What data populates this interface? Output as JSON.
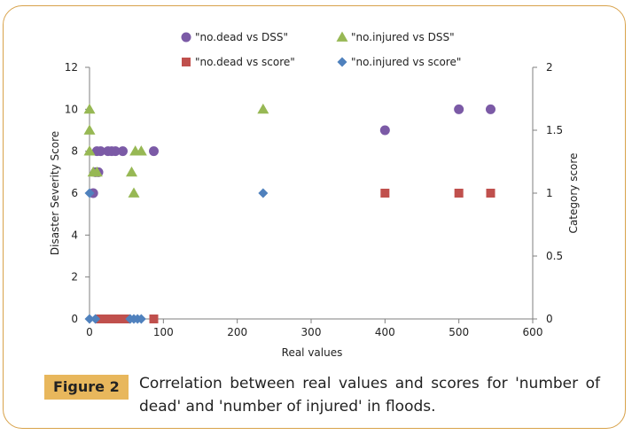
{
  "chart_data": {
    "type": "scatter",
    "xlabel": "Real values",
    "ylabel": "Disaster Severity Score",
    "y2label": "Category score",
    "xlim": [
      0,
      600
    ],
    "ylim": [
      0,
      12
    ],
    "y2lim": [
      0,
      2
    ],
    "xticks": [
      0,
      100,
      200,
      300,
      400,
      500,
      600
    ],
    "yticks": [
      0,
      2,
      4,
      6,
      8,
      10,
      12
    ],
    "y2ticks": [
      "0",
      "0.5",
      "1",
      "1.5",
      "2"
    ],
    "y2tickvals": [
      0,
      0.5,
      1,
      1.5,
      2
    ],
    "grid": false,
    "legend_position": "top",
    "series": [
      {
        "name": "\"no.dead vs DSS\"",
        "axis": "left",
        "marker": "circle",
        "color": "#7b5aa6",
        "points": [
          [
            5,
            6
          ],
          [
            8,
            7
          ],
          [
            12,
            7
          ],
          [
            10,
            8
          ],
          [
            15,
            8
          ],
          [
            25,
            8
          ],
          [
            30,
            8
          ],
          [
            35,
            8
          ],
          [
            45,
            8
          ],
          [
            87,
            8
          ],
          [
            400,
            9
          ],
          [
            500,
            10
          ],
          [
            543,
            10
          ]
        ]
      },
      {
        "name": "\"no.injured vs DSS\"",
        "axis": "left",
        "marker": "triangle",
        "color": "#97b854",
        "points": [
          [
            0,
            8
          ],
          [
            0,
            9
          ],
          [
            0,
            10
          ],
          [
            5,
            7
          ],
          [
            10,
            7
          ],
          [
            57,
            7
          ],
          [
            60,
            6
          ],
          [
            62,
            8
          ],
          [
            70,
            8
          ],
          [
            235,
            10
          ]
        ]
      },
      {
        "name": "\"no.dead vs score\"",
        "axis": "right",
        "marker": "square",
        "color": "#c0504d",
        "points": [
          [
            15,
            0
          ],
          [
            20,
            0
          ],
          [
            25,
            0
          ],
          [
            30,
            0
          ],
          [
            35,
            0
          ],
          [
            40,
            0
          ],
          [
            45,
            0
          ],
          [
            50,
            0
          ],
          [
            87,
            0
          ],
          [
            400,
            1
          ],
          [
            500,
            1
          ],
          [
            543,
            1
          ]
        ]
      },
      {
        "name": "\"no.injured vs score\"",
        "axis": "right",
        "marker": "diamond",
        "color": "#4f81bd",
        "points": [
          [
            0,
            0
          ],
          [
            8,
            0
          ],
          [
            55,
            0
          ],
          [
            60,
            0
          ],
          [
            65,
            0
          ],
          [
            70,
            0
          ],
          [
            0,
            1
          ],
          [
            235,
            1
          ]
        ]
      }
    ]
  },
  "caption": {
    "tag": "Figure 2",
    "text": "Correlation between real values and scores for 'number of dead' and 'number of injured' in floods."
  }
}
